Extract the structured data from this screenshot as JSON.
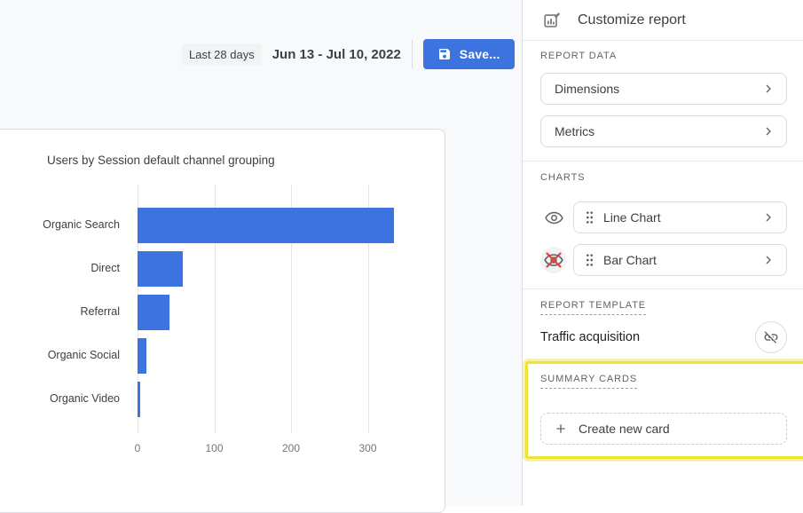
{
  "toolbar": {
    "date_range_chip": "Last 28 days",
    "date_range": "Jun 13 - Jul 10, 2022",
    "save_label": "Save..."
  },
  "chart_data": {
    "type": "bar",
    "orientation": "horizontal",
    "title": "Users by Session default channel grouping",
    "categories": [
      "Organic Search",
      "Direct",
      "Referral",
      "Organic Social",
      "Organic Video"
    ],
    "values": [
      334,
      59,
      42,
      11,
      4
    ],
    "xlabel": "",
    "ylabel": "",
    "xlim": [
      0,
      400
    ],
    "xticks": [
      0,
      100,
      200,
      300
    ],
    "grid": true,
    "bar_color": "#3D73DE",
    "legend": "none"
  },
  "panel": {
    "title": "Customize report",
    "report_data": {
      "label": "REPORT DATA",
      "items": [
        {
          "label": "Dimensions"
        },
        {
          "label": "Metrics"
        }
      ]
    },
    "charts": {
      "label": "CHARTS",
      "items": [
        {
          "label": "Line Chart",
          "visible": true
        },
        {
          "label": "Bar Chart",
          "visible": false
        }
      ]
    },
    "report_template": {
      "label": "REPORT TEMPLATE",
      "value": "Traffic acquisition"
    },
    "summary_cards": {
      "label": "SUMMARY CARDS",
      "create_label": "Create new card"
    }
  },
  "icons": [
    "customize-report-icon",
    "save-icon",
    "chevron-right-icon",
    "eye-icon",
    "eye-off-crossed-icon",
    "drag-handle-icon",
    "unlink-icon",
    "plus-icon"
  ],
  "colors": {
    "accent_blue": "#3D73DE",
    "highlight_yellow": "#EDE335",
    "eye_cross_red": "#DB4437",
    "background_gray": "#F8F9FA",
    "border_gray": "#DADCE0"
  }
}
